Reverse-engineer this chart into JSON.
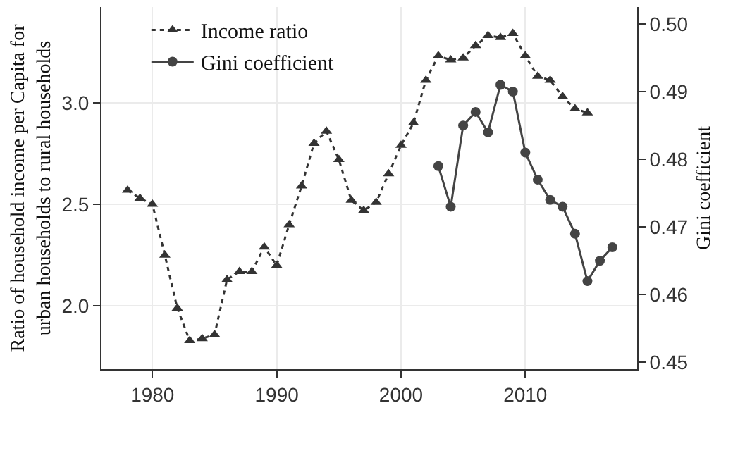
{
  "chart_data": {
    "type": "line",
    "x": [
      1978,
      1979,
      1980,
      1981,
      1982,
      1983,
      1984,
      1985,
      1986,
      1987,
      1988,
      1989,
      1990,
      1991,
      1992,
      1993,
      1994,
      1995,
      1996,
      1997,
      1998,
      1999,
      2000,
      2001,
      2002,
      2003,
      2004,
      2005,
      2006,
      2007,
      2008,
      2009,
      2010,
      2011,
      2012,
      2013,
      2014,
      2015
    ],
    "series": [
      {
        "name": "Income ratio",
        "color": "#333333",
        "marker": "triangle",
        "line_style": "dotted",
        "values": [
          2.57,
          2.53,
          2.5,
          2.25,
          1.99,
          1.83,
          1.84,
          1.86,
          2.13,
          2.17,
          2.17,
          2.29,
          2.2,
          2.4,
          2.59,
          2.8,
          2.86,
          2.72,
          2.52,
          2.47,
          2.51,
          2.65,
          2.79,
          2.9,
          3.11,
          3.23,
          3.21,
          3.22,
          3.28,
          3.33,
          3.32,
          3.34,
          3.23,
          3.13,
          3.11,
          3.03,
          2.97,
          2.95
        ]
      },
      {
        "name": "Gini coefficient",
        "color": "#444444",
        "marker": "circle",
        "line_style": "solid",
        "axis": "y2",
        "x": [
          2003,
          2004,
          2005,
          2006,
          2007,
          2008,
          2009,
          2010,
          2011,
          2012,
          2013,
          2014,
          2015,
          2016,
          2017
        ],
        "values": [
          0.479,
          0.473,
          0.485,
          0.487,
          0.484,
          0.491,
          0.49,
          0.481,
          0.477,
          0.474,
          0.473,
          0.469,
          0.462,
          0.465,
          0.467
        ]
      }
    ],
    "ylabel": "Ratio of household income per Capita for urban households to rural households",
    "y2label": "Gini coefficient",
    "xlim": [
      1975.9,
      2019.0
    ],
    "xticks": [
      1980,
      1990,
      2000,
      2010
    ],
    "ylim": [
      1.69,
      3.47
    ],
    "yticks": [
      {
        "value": 2,
        "label": "2.0"
      },
      2.5,
      {
        "value": 3,
        "label": "3.0"
      }
    ],
    "y2lim": [
      0.449,
      0.5025
    ],
    "y2ticks": [
      0.45,
      0.46,
      0.47,
      0.48,
      0.49,
      {
        "value": 0.5,
        "label": "0.50"
      }
    ],
    "grid": true,
    "legend": "top left"
  }
}
